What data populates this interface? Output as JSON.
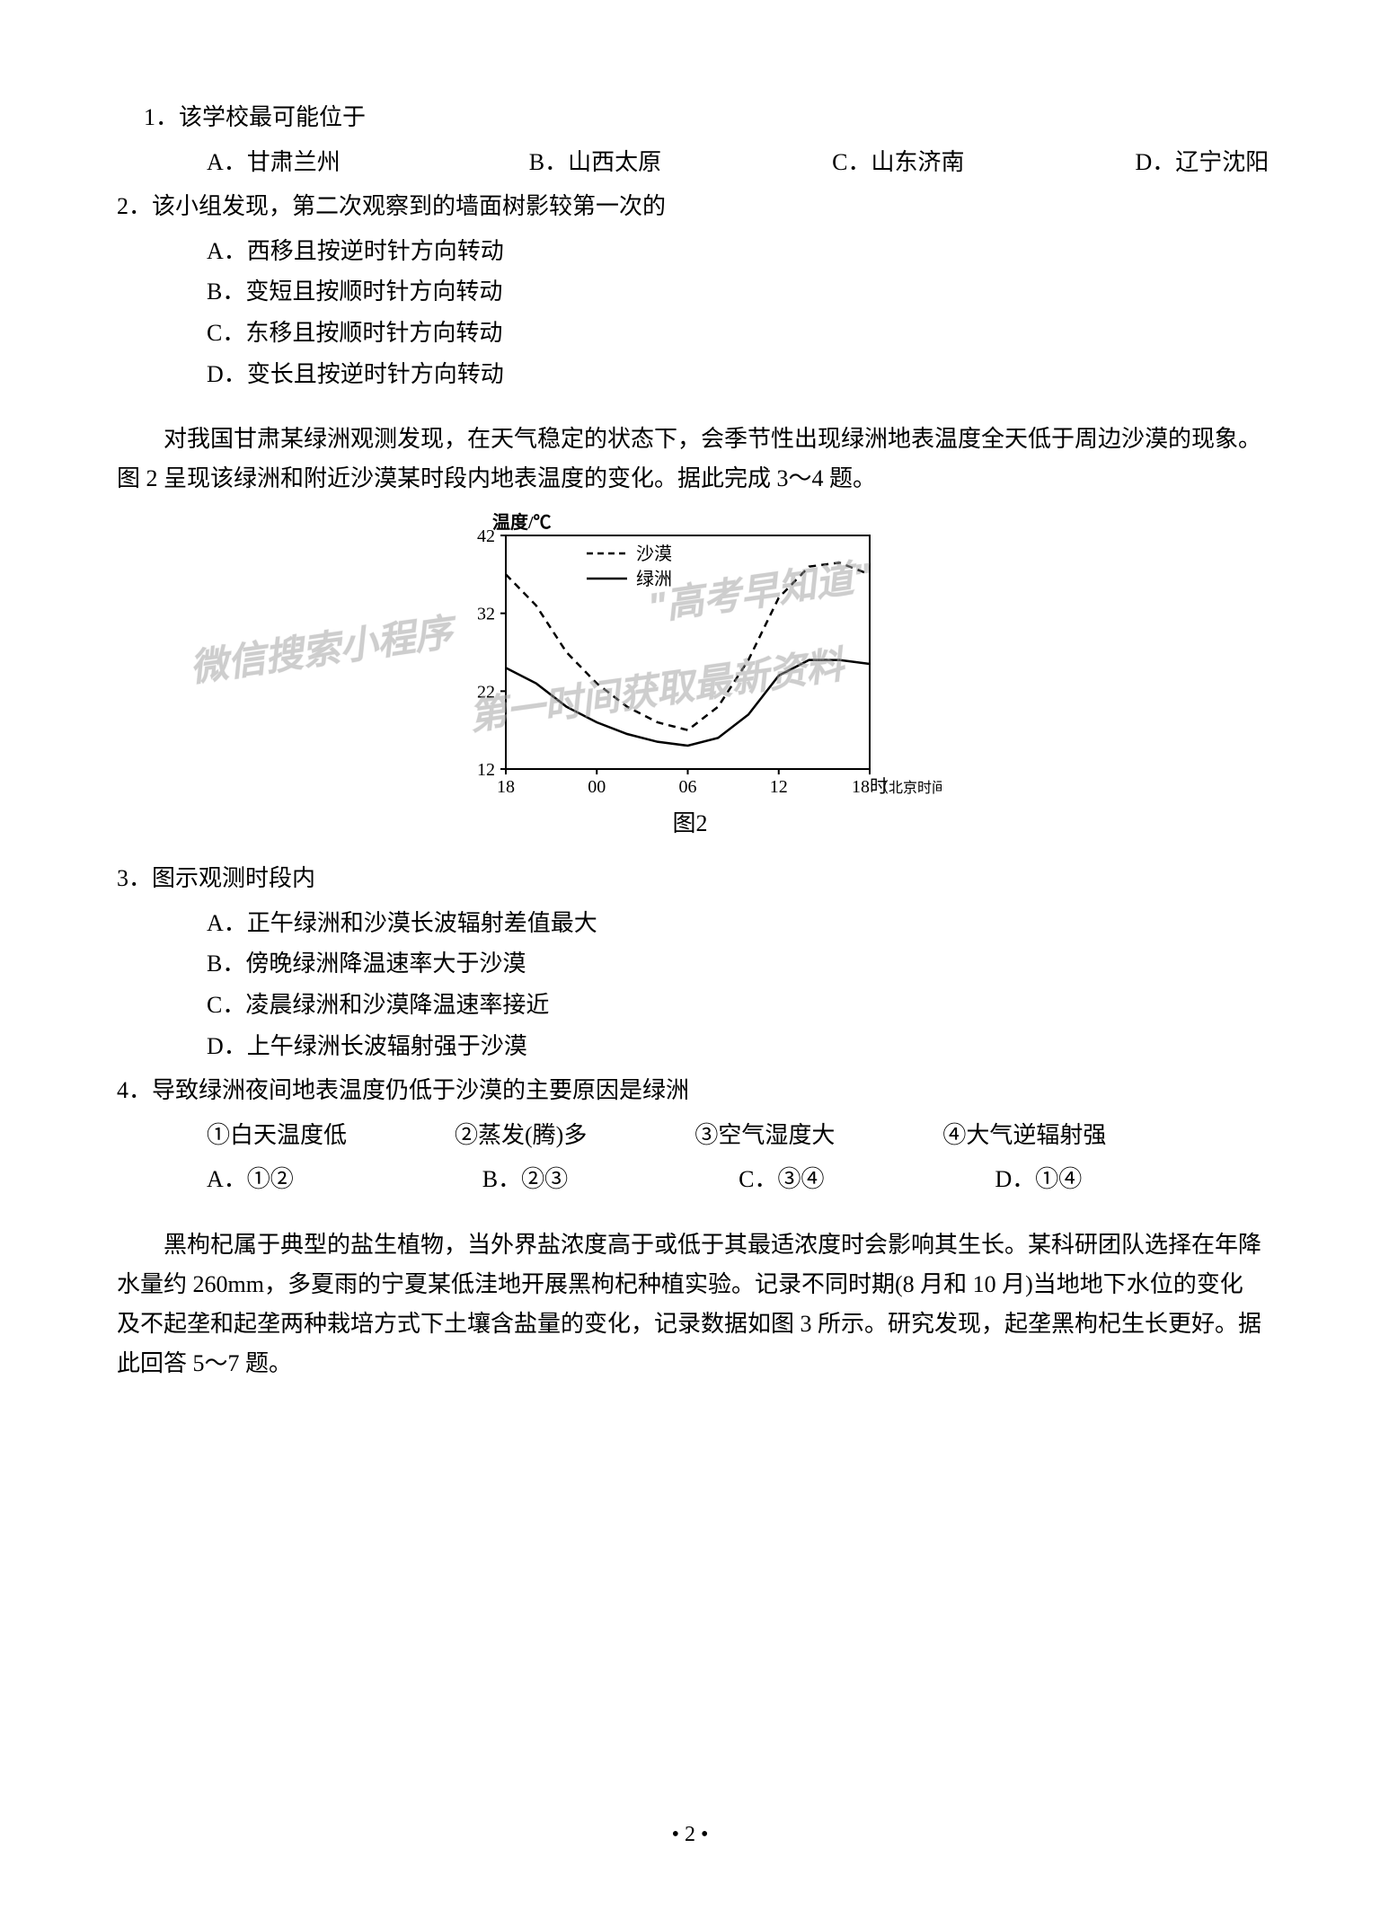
{
  "q1": {
    "stem": "1．该学校最可能位于",
    "opts": {
      "a": "A．甘肃兰州",
      "b": "B．山西太原",
      "c": "C．山东济南",
      "d": "D．辽宁沈阳"
    }
  },
  "q2": {
    "stem": "2．该小组发现，第二次观察到的墙面树影较第一次的",
    "opts": {
      "a": "A．西移且按逆时针方向转动",
      "b": "B．变短且按顺时针方向转动",
      "c": "C．东移且按顺时针方向转动",
      "d": "D．变长且按逆时针方向转动"
    }
  },
  "passage1": "对我国甘肃某绿洲观测发现，在天气稳定的状态下，会季节性出现绿洲地表温度全天低于周边沙漠的现象。图 2 呈现该绿洲和附近沙漠某时段内地表温度的变化。据此完成 3～4 题。",
  "chart": {
    "type": "line",
    "y_label": "温度/℃",
    "y_ticks": [
      12,
      22,
      32,
      42
    ],
    "x_ticks": [
      "18",
      "00",
      "06",
      "12",
      "18时"
    ],
    "x_note": "（北京时间）",
    "legend": {
      "desert": "沙漠",
      "oasis": "绿洲"
    },
    "desert_style": "dashed",
    "oasis_style": "solid",
    "line_color": "#000000",
    "border_color": "#000000",
    "background": "#ffffff",
    "desert_points": [
      {
        "x": 0,
        "y": 37
      },
      {
        "x": 1,
        "y": 33
      },
      {
        "x": 2,
        "y": 27
      },
      {
        "x": 3,
        "y": 23
      },
      {
        "x": 4,
        "y": 20
      },
      {
        "x": 5,
        "y": 18
      },
      {
        "x": 6,
        "y": 17
      },
      {
        "x": 7,
        "y": 20
      },
      {
        "x": 8,
        "y": 26
      },
      {
        "x": 9,
        "y": 34
      },
      {
        "x": 10,
        "y": 38
      },
      {
        "x": 11,
        "y": 38.5
      },
      {
        "x": 12,
        "y": 37
      }
    ],
    "oasis_points": [
      {
        "x": 0,
        "y": 25
      },
      {
        "x": 1,
        "y": 23
      },
      {
        "x": 2,
        "y": 20
      },
      {
        "x": 3,
        "y": 18
      },
      {
        "x": 4,
        "y": 16.5
      },
      {
        "x": 5,
        "y": 15.5
      },
      {
        "x": 6,
        "y": 15
      },
      {
        "x": 7,
        "y": 16
      },
      {
        "x": 8,
        "y": 19
      },
      {
        "x": 9,
        "y": 24
      },
      {
        "x": 10,
        "y": 26
      },
      {
        "x": 11,
        "y": 26
      },
      {
        "x": 12,
        "y": 25.5
      }
    ],
    "caption": "图2"
  },
  "q3": {
    "stem": "3．图示观测时段内",
    "opts": {
      "a": "A．正午绿洲和沙漠长波辐射差值最大",
      "b": "B．傍晚绿洲降温速率大于沙漠",
      "c": "C．凌晨绿洲和沙漠降温速率接近",
      "d": "D．上午绿洲长波辐射强于沙漠"
    }
  },
  "q4": {
    "stem": "4．导致绿洲夜间地表温度仍低于沙漠的主要原因是绿洲",
    "subs": {
      "s1": "①白天温度低",
      "s2": "②蒸发(腾)多",
      "s3": "③空气湿度大",
      "s4": "④大气逆辐射强"
    },
    "opts": {
      "a": "A．①②",
      "b": "B．②③",
      "c": "C．③④",
      "d": "D．①④"
    }
  },
  "passage2": "黑枸杞属于典型的盐生植物，当外界盐浓度高于或低于其最适浓度时会影响其生长。某科研团队选择在年降水量约 260mm，多夏雨的宁夏某低洼地开展黑枸杞种植实验。记录不同时期(8 月和 10 月)当地地下水位的变化及不起垄和起垄两种栽培方式下土壤含盐量的变化，记录数据如图 3 所示。研究发现，起垄黑枸杞生长更好。据此回答 5～7 题。",
  "page_number": "• 2 •",
  "watermarks": {
    "wm1": "\"高考早知道\"",
    "wm2": "微信搜索小程序",
    "wm3": "第一时间获取最新资料"
  }
}
